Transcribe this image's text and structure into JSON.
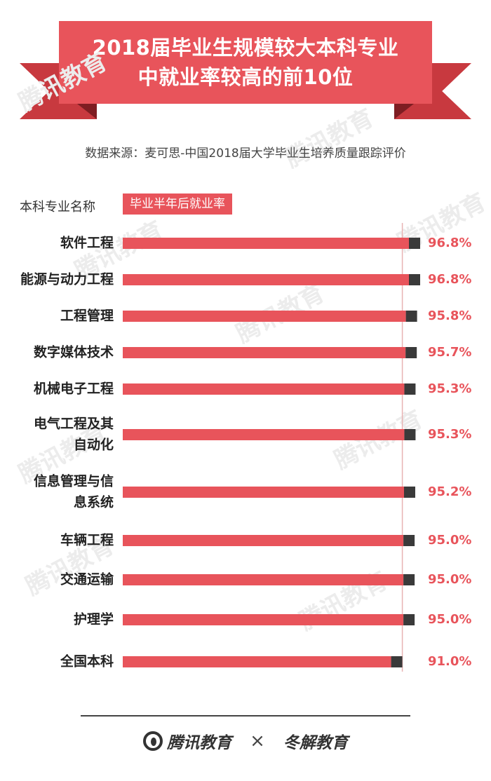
{
  "title": {
    "line1": "2018届毕业生规模较大本科专业",
    "line2": "中就业率较高的前10位"
  },
  "source": "数据来源：麦可思-中国2018届大学毕业生培养质量跟踪评价",
  "header": {
    "name_label": "本科专业名称",
    "value_label": "毕业半年后就业率"
  },
  "watermark_text": "腾讯教育",
  "footer": {
    "logo_left": "腾讯教育",
    "separator": "×",
    "logo_right": "冬解教育"
  },
  "colors": {
    "bar": "#e8545b",
    "bar_tip": "#3a3a3a",
    "value_text": "#e8545b",
    "ribbon": "#e8545b",
    "baseline": "#e8b3b3"
  },
  "chart_data": {
    "type": "bar",
    "orientation": "horizontal",
    "title": "",
    "xlabel": "毕业半年后就业率",
    "ylabel": "本科专业名称",
    "categories": [
      [
        "软件工程"
      ],
      [
        "能源与动力工程"
      ],
      [
        "工程管理"
      ],
      [
        "数字媒体技术"
      ],
      [
        "机械电子工程"
      ],
      [
        "电气工程及其",
        "自动化"
      ],
      [
        "信息管理与信",
        "息系统"
      ],
      [
        "车辆工程"
      ],
      [
        "交通运输"
      ],
      [
        "护理学"
      ],
      [
        "全国本科"
      ]
    ],
    "values": [
      96.8,
      96.8,
      95.8,
      95.7,
      95.3,
      95.3,
      95.2,
      95.0,
      95.0,
      95.0,
      91.0
    ],
    "value_labels": [
      "96.8%",
      "96.8%",
      "95.8%",
      "95.7%",
      "95.3%",
      "95.3%",
      "95.2%",
      "95.0%",
      "95.0%",
      "95.0%",
      "91.0%"
    ],
    "reference_line_value": 91.0,
    "unit": "%"
  }
}
